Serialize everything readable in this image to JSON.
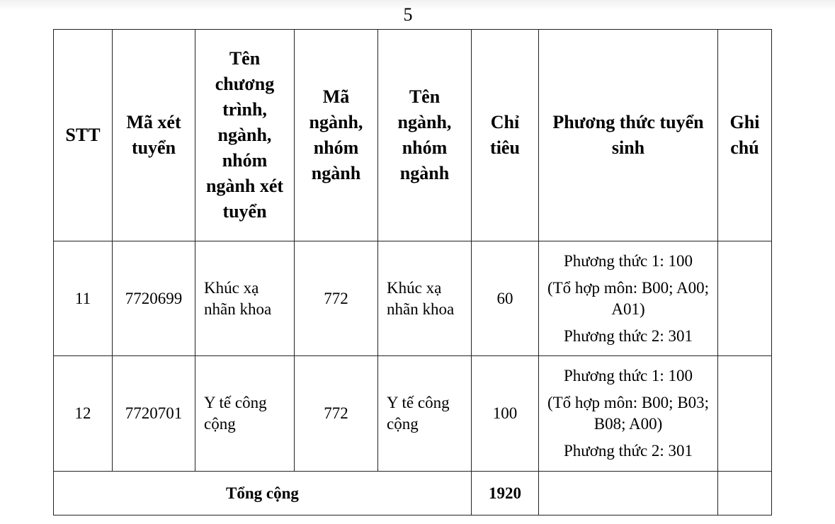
{
  "page_number": "5",
  "headers": [
    "STT",
    "Mã xét tuyển",
    "Tên chương trình, ngành, nhóm ngành xét tuyển",
    "Mã ngành, nhóm ngành",
    "Tên ngành, nhóm ngành",
    "Chỉ tiêu",
    "Phương thức tuyển sinh",
    "Ghi chú"
  ],
  "rows": [
    {
      "stt": "11",
      "ma_xet_tuyen": "7720699",
      "ten_chuong_trinh": "Khúc xạ nhãn khoa",
      "ma_nganh": "772",
      "ten_nganh": "Khúc xạ nhãn khoa",
      "chi_tieu": "60",
      "phuong_thuc": [
        "Phương thức 1: 100",
        "(Tổ hợp môn: B00; A00; A01)",
        "Phương thức 2: 301"
      ],
      "ghi_chu": ""
    },
    {
      "stt": "12",
      "ma_xet_tuyen": "7720701",
      "ten_chuong_trinh": "Y tế công cộng",
      "ma_nganh": "772",
      "ten_nganh": "Y tế công cộng",
      "chi_tieu": "100",
      "phuong_thuc": [
        "Phương thức 1: 100",
        "(Tổ hợp môn: B00; B03; B08; A00)",
        "Phương thức 2: 301"
      ],
      "ghi_chu": ""
    }
  ],
  "total": {
    "label": "Tổng cộng",
    "value": "1920"
  }
}
